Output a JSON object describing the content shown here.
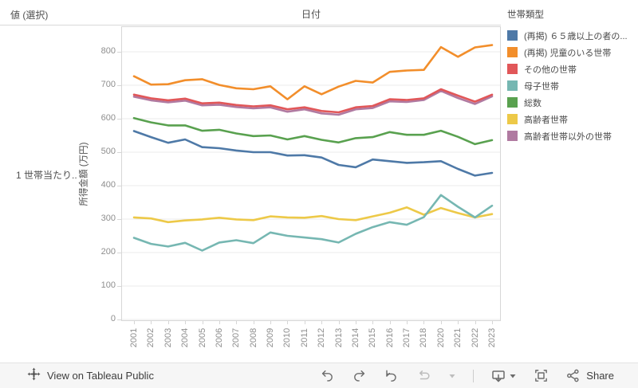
{
  "title_bar": {
    "left_label": "値 (選択)",
    "center_label": "日付"
  },
  "row_label": "1 世帯当たり..",
  "legend": {
    "title": "世帯類型",
    "items": [
      {
        "label": "(再掲) ６５歳以上の者の...",
        "color": "#4e79a7"
      },
      {
        "label": "(再掲) 児童のいる世帯",
        "color": "#f28e2b"
      },
      {
        "label": "その他の世帯",
        "color": "#e15759"
      },
      {
        "label": "母子世帯",
        "color": "#76b7b2"
      },
      {
        "label": "総数",
        "color": "#59a14f"
      },
      {
        "label": "高齢者世帯",
        "color": "#edc948"
      },
      {
        "label": "高齢者世帯以外の世帯",
        "color": "#b07aa1"
      }
    ]
  },
  "chart_data": {
    "type": "line",
    "title": "",
    "xlabel": "日付",
    "ylabel": "所得金額 (万円)",
    "ylim": [
      0,
      860
    ],
    "y_ticks": [
      0,
      100,
      200,
      300,
      400,
      500,
      600,
      700,
      800
    ],
    "grid": true,
    "legend_position": "right",
    "categories": [
      "2001",
      "2002",
      "2003",
      "2004",
      "2005",
      "2006",
      "2007",
      "2008",
      "2009",
      "2010",
      "2011",
      "2012",
      "2013",
      "2014",
      "2015",
      "2016",
      "2017",
      "2018",
      "2020",
      "2021",
      "2022",
      "2023"
    ],
    "series": [
      {
        "name": "(再掲) ６５歳以上の者の...",
        "color": "#4e79a7",
        "values": [
          563,
          545,
          528,
          538,
          515,
          512,
          505,
          500,
          500,
          490,
          491,
          484,
          462,
          455,
          478,
          473,
          468,
          470,
          473,
          450,
          430,
          438
        ]
      },
      {
        "name": "(再掲) 児童のいる世帯",
        "color": "#f28e2b",
        "values": [
          727,
          702,
          703,
          715,
          718,
          701,
          691,
          688,
          697,
          658,
          697,
          673,
          696,
          713,
          708,
          740,
          744,
          746,
          814,
          785,
          813,
          820
        ]
      },
      {
        "name": "その他の世帯",
        "color": "#e15759",
        "values": [
          672,
          661,
          655,
          660,
          646,
          648,
          641,
          637,
          640,
          628,
          634,
          623,
          619,
          634,
          638,
          658,
          656,
          661,
          688,
          669,
          651,
          672
        ]
      },
      {
        "name": "母子世帯",
        "color": "#76b7b2",
        "values": [
          244,
          226,
          218,
          229,
          206,
          230,
          237,
          228,
          260,
          250,
          245,
          240,
          230,
          256,
          276,
          291,
          283,
          306,
          372,
          337,
          305,
          340
        ]
      },
      {
        "name": "総数",
        "color": "#59a14f",
        "values": [
          602,
          589,
          580,
          580,
          564,
          567,
          556,
          548,
          550,
          538,
          548,
          537,
          529,
          542,
          545,
          560,
          552,
          552,
          564,
          546,
          524,
          536
        ]
      },
      {
        "name": "高齢者世帯",
        "color": "#edc948",
        "values": [
          305,
          302,
          291,
          296,
          299,
          304,
          299,
          297,
          308,
          305,
          304,
          309,
          300,
          297,
          308,
          319,
          335,
          313,
          333,
          318,
          305,
          315
        ]
      },
      {
        "name": "高齢者世帯以外の世帯",
        "color": "#b07aa1",
        "values": [
          666,
          655,
          649,
          654,
          640,
          642,
          635,
          631,
          634,
          621,
          628,
          616,
          612,
          628,
          632,
          652,
          650,
          656,
          683,
          662,
          644,
          667
        ]
      }
    ],
    "draw_order": [
      6,
      2,
      4,
      0,
      5,
      3,
      1
    ]
  },
  "footer": {
    "view_label": "View on Tableau Public",
    "share_label": "Share",
    "icons": [
      "tableau-logo",
      "undo",
      "redo",
      "replay",
      "refresh",
      "caret-down",
      "download-image",
      "caret-down",
      "fullscreen",
      "share"
    ]
  }
}
